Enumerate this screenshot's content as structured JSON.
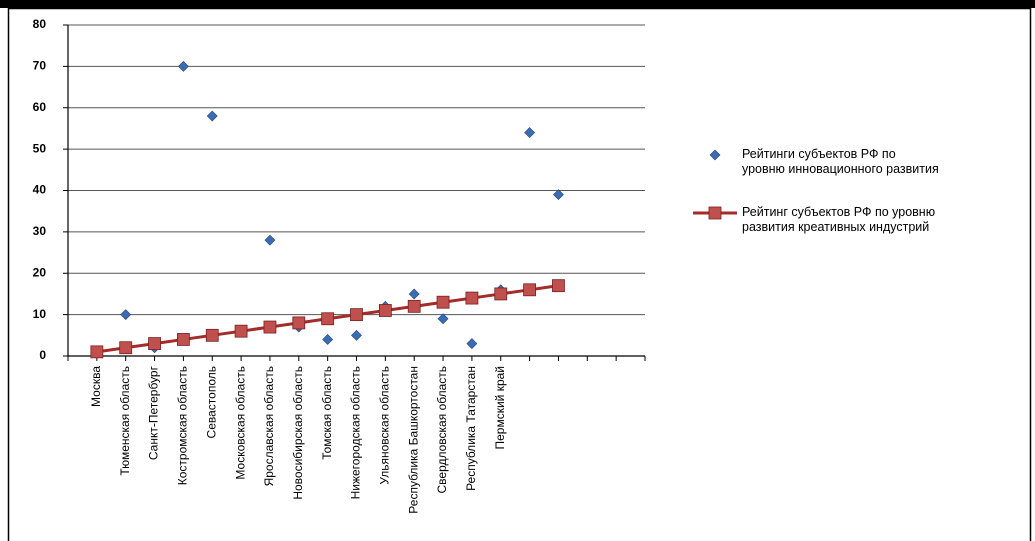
{
  "chart_data": {
    "type": "line",
    "categories": [
      "Москва",
      "Тюменская область",
      "Санкт-Петербург",
      "Костромская область",
      "Севастополь",
      "Московская область",
      "Ярославская область",
      "Новосибирская область",
      "Томская область",
      "Нижегородская область",
      "Ульяновская область",
      "Республика Башкортостан",
      "Свердловская область",
      "Республика Татарстан",
      "Пермский край",
      null,
      null
    ],
    "series": [
      {
        "name": "Рейтинги субъектов РФ по уровню инновационного развития",
        "type": "scatter",
        "color": "#3b6cb3",
        "values": [
          1,
          10,
          2,
          70,
          58,
          6,
          28,
          7,
          4,
          5,
          12,
          15,
          9,
          3,
          16,
          54,
          39
        ]
      },
      {
        "name": "Рейтинг субъектов РФ по уровню развития  креативных индустрий",
        "type": "line",
        "color": "#a52a2a",
        "marker_color": "#c0504d",
        "values": [
          1,
          2,
          3,
          4,
          5,
          6,
          7,
          8,
          9,
          10,
          11,
          12,
          13,
          14,
          15,
          16,
          17
        ]
      }
    ],
    "ylim": [
      0,
      80
    ],
    "yticks": [
      0,
      10,
      20,
      30,
      40,
      50,
      60,
      70,
      80
    ],
    "grid": true,
    "legend": "right"
  }
}
